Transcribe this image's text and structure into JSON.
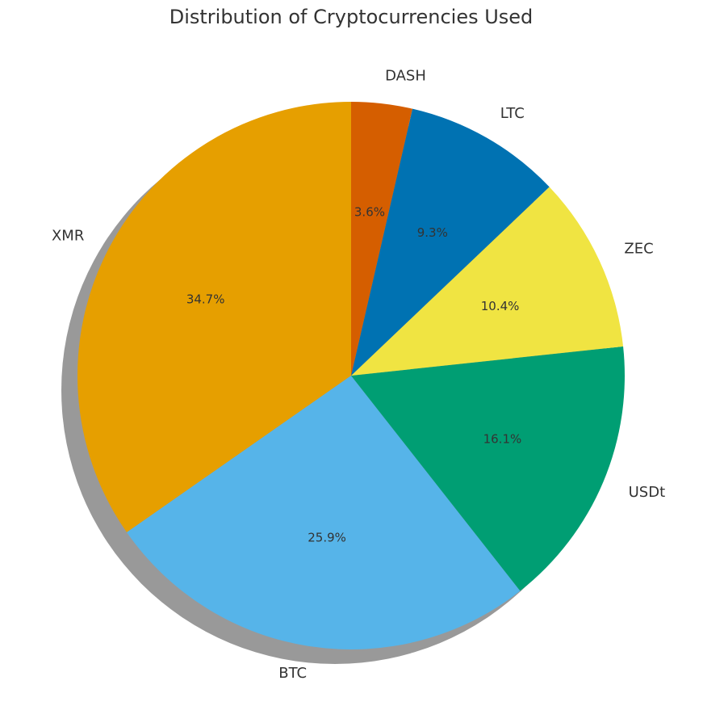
{
  "chart_data": {
    "type": "pie",
    "title": "Distribution of Cryptocurrencies Used",
    "categories": [
      "XMR",
      "BTC",
      "USDt",
      "ZEC",
      "LTC",
      "DASH"
    ],
    "values": [
      34.7,
      25.9,
      16.1,
      10.4,
      9.3,
      3.6
    ],
    "value_labels": [
      "34.7%",
      "25.9%",
      "16.1%",
      "10.4%",
      "9.3%",
      "3.6%"
    ],
    "colors": [
      "#e69f00",
      "#56b4e9",
      "#009e73",
      "#f0e442",
      "#0072b2",
      "#d55e00"
    ],
    "shadow": true
  }
}
